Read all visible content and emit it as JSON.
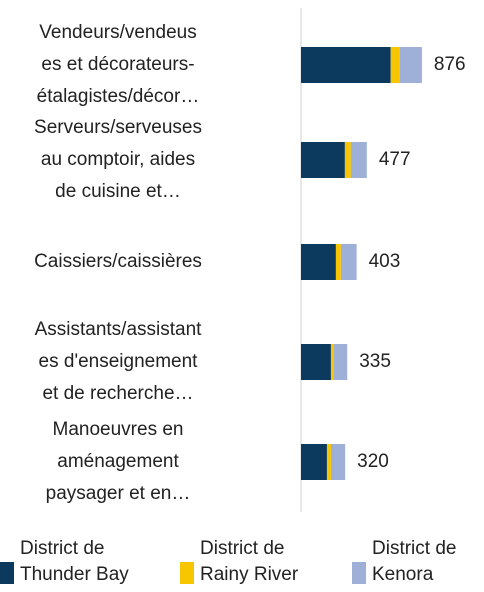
{
  "chart_data": {
    "type": "stacked-barh",
    "categories": [
      [
        "Vendeurs/vendeus",
        "es et décorateurs-",
        "étalagistes/décor…"
      ],
      [
        "Serveurs/serveuses",
        "au comptoir, aides",
        "de cuisine et…"
      ],
      [
        "Caissiers/caissières"
      ],
      [
        "Assistants/assistant",
        "es d'enseignement",
        "et de recherche…"
      ],
      [
        "Manoeuvres en",
        "aménagement",
        "paysager et en…"
      ]
    ],
    "series": [
      {
        "name": "District de Thunder Bay",
        "color": "#0b3a5e",
        "values": [
          650,
          318,
          253,
          217,
          188
        ]
      },
      {
        "name": "District de Rainy River",
        "color": "#f7c600",
        "values": [
          65,
          43,
          36,
          22,
          29
        ]
      },
      {
        "name": "District de Kenora",
        "color": "#9fb0d8",
        "values": [
          161,
          116,
          114,
          96,
          103
        ]
      }
    ],
    "totals": [
      876,
      477,
      403,
      335,
      320
    ],
    "xlim": [
      0,
      1000
    ],
    "grid": false,
    "legend": "bottom"
  }
}
